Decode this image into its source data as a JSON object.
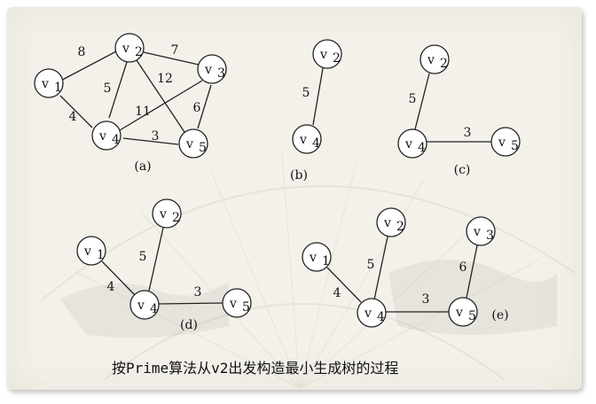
{
  "caption": "按Prime算法从v2出发构造最小生成树的过程",
  "vertex_prefix": "v",
  "graphs": [
    {
      "id": "a",
      "label": "(a)",
      "nodes": [
        {
          "id": "v1",
          "sub": "1"
        },
        {
          "id": "v2",
          "sub": "2"
        },
        {
          "id": "v3",
          "sub": "3"
        },
        {
          "id": "v4",
          "sub": "4"
        },
        {
          "id": "v5",
          "sub": "5"
        }
      ],
      "edges": [
        {
          "from": "v1",
          "to": "v2",
          "weight": "8"
        },
        {
          "from": "v2",
          "to": "v3",
          "weight": "7"
        },
        {
          "from": "v2",
          "to": "v4",
          "weight": "5"
        },
        {
          "from": "v2",
          "to": "v5",
          "weight": "12"
        },
        {
          "from": "v3",
          "to": "v4",
          "weight": "11"
        },
        {
          "from": "v3",
          "to": "v5",
          "weight": "6"
        },
        {
          "from": "v1",
          "to": "v4",
          "weight": "4"
        },
        {
          "from": "v4",
          "to": "v5",
          "weight": "3"
        }
      ]
    },
    {
      "id": "b",
      "label": "(b)",
      "nodes": [
        {
          "id": "v2",
          "sub": "2"
        },
        {
          "id": "v4",
          "sub": "4"
        }
      ],
      "edges": [
        {
          "from": "v2",
          "to": "v4",
          "weight": "5"
        }
      ]
    },
    {
      "id": "c",
      "label": "(c)",
      "nodes": [
        {
          "id": "v2",
          "sub": "2"
        },
        {
          "id": "v4",
          "sub": "4"
        },
        {
          "id": "v5",
          "sub": "5"
        }
      ],
      "edges": [
        {
          "from": "v2",
          "to": "v4",
          "weight": "5"
        },
        {
          "from": "v4",
          "to": "v5",
          "weight": "3"
        }
      ]
    },
    {
      "id": "d",
      "label": "(d)",
      "nodes": [
        {
          "id": "v1",
          "sub": "1"
        },
        {
          "id": "v2",
          "sub": "2"
        },
        {
          "id": "v4",
          "sub": "4"
        },
        {
          "id": "v5",
          "sub": "5"
        }
      ],
      "edges": [
        {
          "from": "v2",
          "to": "v4",
          "weight": "5"
        },
        {
          "from": "v1",
          "to": "v4",
          "weight": "4"
        },
        {
          "from": "v4",
          "to": "v5",
          "weight": "3"
        }
      ]
    },
    {
      "id": "e",
      "label": "(e)",
      "nodes": [
        {
          "id": "v1",
          "sub": "1"
        },
        {
          "id": "v2",
          "sub": "2"
        },
        {
          "id": "v3",
          "sub": "3"
        },
        {
          "id": "v4",
          "sub": "4"
        },
        {
          "id": "v5",
          "sub": "5"
        }
      ],
      "edges": [
        {
          "from": "v2",
          "to": "v4",
          "weight": "5"
        },
        {
          "from": "v1",
          "to": "v4",
          "weight": "4"
        },
        {
          "from": "v4",
          "to": "v5",
          "weight": "3"
        },
        {
          "from": "v3",
          "to": "v5",
          "weight": "6"
        }
      ]
    }
  ]
}
